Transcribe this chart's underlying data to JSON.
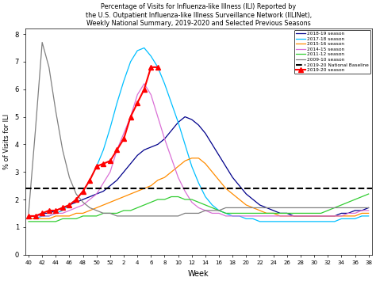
{
  "title": "Percentage of Visits for Influenza-like Illness (ILI) Reported by\nthe U.S. Outpatient Influenza-like Illness Surveillance Network (IILINet),\nWeekly National Summary, 2019-2020 and Selected Previous Seasons",
  "xlabel": "Week",
  "ylabel": "% of Visits for ILI",
  "ylim": [
    0,
    8.2
  ],
  "baseline": 2.4,
  "tick_weeks": [
    40,
    42,
    44,
    46,
    48,
    50,
    52,
    2,
    4,
    6,
    8,
    10,
    12,
    14,
    16,
    18,
    20,
    22,
    24,
    26,
    28,
    30,
    32,
    34,
    36,
    38
  ],
  "season_2009_10": {
    "weeks": [
      40,
      41,
      42,
      43,
      44,
      45,
      46,
      47,
      48,
      49,
      50,
      51,
      52,
      1,
      2,
      3,
      4,
      5,
      6,
      7,
      8,
      9,
      10,
      11,
      12,
      13,
      14,
      15,
      16,
      17,
      18,
      19,
      20,
      21,
      22,
      23,
      24,
      25,
      26,
      27,
      28,
      29,
      30,
      31,
      32,
      33,
      34,
      35,
      36,
      37,
      38
    ],
    "values": [
      1.5,
      4.5,
      7.7,
      6.8,
      5.2,
      3.8,
      2.8,
      2.2,
      1.9,
      1.7,
      1.6,
      1.5,
      1.5,
      1.4,
      1.4,
      1.4,
      1.4,
      1.4,
      1.4,
      1.4,
      1.4,
      1.4,
      1.4,
      1.5,
      1.5,
      1.5,
      1.6,
      1.6,
      1.6,
      1.7,
      1.7,
      1.7,
      1.7,
      1.7,
      1.7,
      1.7,
      1.7,
      1.7,
      1.7,
      1.7,
      1.7,
      1.7,
      1.7,
      1.7,
      1.7,
      1.7,
      1.7,
      1.7,
      1.7,
      1.7,
      1.7
    ],
    "color": "#808080",
    "label": "2009-10 season"
  },
  "season_2011_12": {
    "weeks": [
      40,
      41,
      42,
      43,
      44,
      45,
      46,
      47,
      48,
      49,
      50,
      51,
      52,
      1,
      2,
      3,
      4,
      5,
      6,
      7,
      8,
      9,
      10,
      11,
      12,
      13,
      14,
      15,
      16,
      17,
      18,
      19,
      20,
      21,
      22,
      23,
      24,
      25,
      26,
      27,
      28,
      29,
      30,
      31,
      32,
      33,
      34,
      35,
      36,
      37,
      38
    ],
    "values": [
      1.2,
      1.2,
      1.2,
      1.2,
      1.2,
      1.3,
      1.3,
      1.3,
      1.4,
      1.4,
      1.4,
      1.5,
      1.5,
      1.5,
      1.6,
      1.6,
      1.7,
      1.8,
      1.9,
      2.0,
      2.0,
      2.1,
      2.1,
      2.0,
      2.0,
      1.9,
      1.8,
      1.7,
      1.6,
      1.5,
      1.5,
      1.5,
      1.5,
      1.5,
      1.5,
      1.5,
      1.5,
      1.5,
      1.5,
      1.5,
      1.5,
      1.5,
      1.5,
      1.5,
      1.6,
      1.7,
      1.8,
      1.9,
      2.0,
      2.1,
      2.2
    ],
    "color": "#32CD32",
    "label": "2011-12 season"
  },
  "season_2014_15": {
    "weeks": [
      40,
      41,
      42,
      43,
      44,
      45,
      46,
      47,
      48,
      49,
      50,
      51,
      52,
      1,
      2,
      3,
      4,
      5,
      6,
      7,
      8,
      9,
      10,
      11,
      12,
      13,
      14,
      15,
      16,
      17,
      18,
      19,
      20,
      21,
      22,
      23,
      24,
      25,
      26,
      27,
      28,
      29,
      30,
      31,
      32,
      33,
      34,
      35,
      36,
      37,
      38
    ],
    "values": [
      1.4,
      1.4,
      1.4,
      1.4,
      1.5,
      1.5,
      1.6,
      1.7,
      1.8,
      2.0,
      2.2,
      2.6,
      3.0,
      3.8,
      4.4,
      5.0,
      5.8,
      6.2,
      5.8,
      5.0,
      4.2,
      3.5,
      2.8,
      2.3,
      1.9,
      1.7,
      1.6,
      1.5,
      1.5,
      1.4,
      1.4,
      1.4,
      1.4,
      1.4,
      1.4,
      1.4,
      1.4,
      1.4,
      1.4,
      1.4,
      1.4,
      1.4,
      1.4,
      1.4,
      1.4,
      1.4,
      1.4,
      1.5,
      1.5,
      1.6,
      1.6
    ],
    "color": "#DA70D6",
    "label": "2014-15 season"
  },
  "season_2015_16": {
    "weeks": [
      40,
      41,
      42,
      43,
      44,
      45,
      46,
      47,
      48,
      49,
      50,
      51,
      52,
      1,
      2,
      3,
      4,
      5,
      6,
      7,
      8,
      9,
      10,
      11,
      12,
      13,
      14,
      15,
      16,
      17,
      18,
      19,
      20,
      21,
      22,
      23,
      24,
      25,
      26,
      27,
      28,
      29,
      30,
      31,
      32,
      33,
      34,
      35,
      36,
      37,
      38
    ],
    "values": [
      1.3,
      1.3,
      1.3,
      1.3,
      1.4,
      1.4,
      1.4,
      1.5,
      1.5,
      1.6,
      1.7,
      1.8,
      1.9,
      2.0,
      2.1,
      2.2,
      2.3,
      2.4,
      2.5,
      2.7,
      2.8,
      3.0,
      3.2,
      3.4,
      3.5,
      3.5,
      3.3,
      3.0,
      2.7,
      2.4,
      2.2,
      2.0,
      1.8,
      1.7,
      1.6,
      1.5,
      1.5,
      1.4,
      1.4,
      1.4,
      1.4,
      1.4,
      1.4,
      1.4,
      1.4,
      1.4,
      1.4,
      1.4,
      1.4,
      1.5,
      1.5
    ],
    "color": "#FF8C00",
    "label": "2015-16 season"
  },
  "season_2017_18": {
    "weeks": [
      40,
      41,
      42,
      43,
      44,
      45,
      46,
      47,
      48,
      49,
      50,
      51,
      52,
      1,
      2,
      3,
      4,
      5,
      6,
      7,
      8,
      9,
      10,
      11,
      12,
      13,
      14,
      15,
      16,
      17,
      18,
      19,
      20,
      21,
      22,
      23,
      24,
      25,
      26,
      27,
      28,
      29,
      30,
      31,
      32,
      33,
      34,
      35,
      36,
      37,
      38
    ],
    "values": [
      1.3,
      1.3,
      1.4,
      1.4,
      1.5,
      1.6,
      1.8,
      2.0,
      2.3,
      2.7,
      3.2,
      3.8,
      4.6,
      5.5,
      6.3,
      7.0,
      7.4,
      7.5,
      7.2,
      6.8,
      6.2,
      5.5,
      4.8,
      4.0,
      3.2,
      2.6,
      2.1,
      1.8,
      1.6,
      1.5,
      1.4,
      1.4,
      1.3,
      1.3,
      1.2,
      1.2,
      1.2,
      1.2,
      1.2,
      1.2,
      1.2,
      1.2,
      1.2,
      1.2,
      1.2,
      1.2,
      1.3,
      1.3,
      1.3,
      1.4,
      1.4
    ],
    "color": "#00BFFF",
    "label": "2017-18 season"
  },
  "season_2018_19": {
    "weeks": [
      40,
      41,
      42,
      43,
      44,
      45,
      46,
      47,
      48,
      49,
      50,
      51,
      52,
      1,
      2,
      3,
      4,
      5,
      6,
      7,
      8,
      9,
      10,
      11,
      12,
      13,
      14,
      15,
      16,
      17,
      18,
      19,
      20,
      21,
      22,
      23,
      24,
      25,
      26,
      27,
      28,
      29,
      30,
      31,
      32,
      33,
      34,
      35,
      36,
      37,
      38
    ],
    "values": [
      1.4,
      1.4,
      1.5,
      1.5,
      1.6,
      1.7,
      1.8,
      1.9,
      2.0,
      2.1,
      2.2,
      2.3,
      2.5,
      2.7,
      3.0,
      3.3,
      3.6,
      3.8,
      3.9,
      4.0,
      4.2,
      4.5,
      4.8,
      5.0,
      4.9,
      4.7,
      4.4,
      4.0,
      3.6,
      3.2,
      2.8,
      2.5,
      2.2,
      2.0,
      1.8,
      1.7,
      1.6,
      1.5,
      1.5,
      1.4,
      1.4,
      1.4,
      1.4,
      1.4,
      1.4,
      1.4,
      1.5,
      1.5,
      1.6,
      1.6,
      1.7
    ],
    "color": "#00008B",
    "label": "2018-19 season"
  },
  "season_2019_20": {
    "weeks": [
      40,
      41,
      42,
      43,
      44,
      45,
      46,
      47,
      48,
      49,
      50,
      51,
      52,
      1,
      2,
      3,
      4,
      5,
      6,
      7
    ],
    "values": [
      1.4,
      1.4,
      1.5,
      1.6,
      1.6,
      1.7,
      1.8,
      2.0,
      2.3,
      2.7,
      3.2,
      3.3,
      3.4,
      3.8,
      4.2,
      5.0,
      5.5,
      6.0,
      6.8,
      6.8
    ],
    "color": "#FF0000",
    "label": "2019-20 season"
  },
  "color_baseline": "#000000",
  "background_color": "#ffffff"
}
